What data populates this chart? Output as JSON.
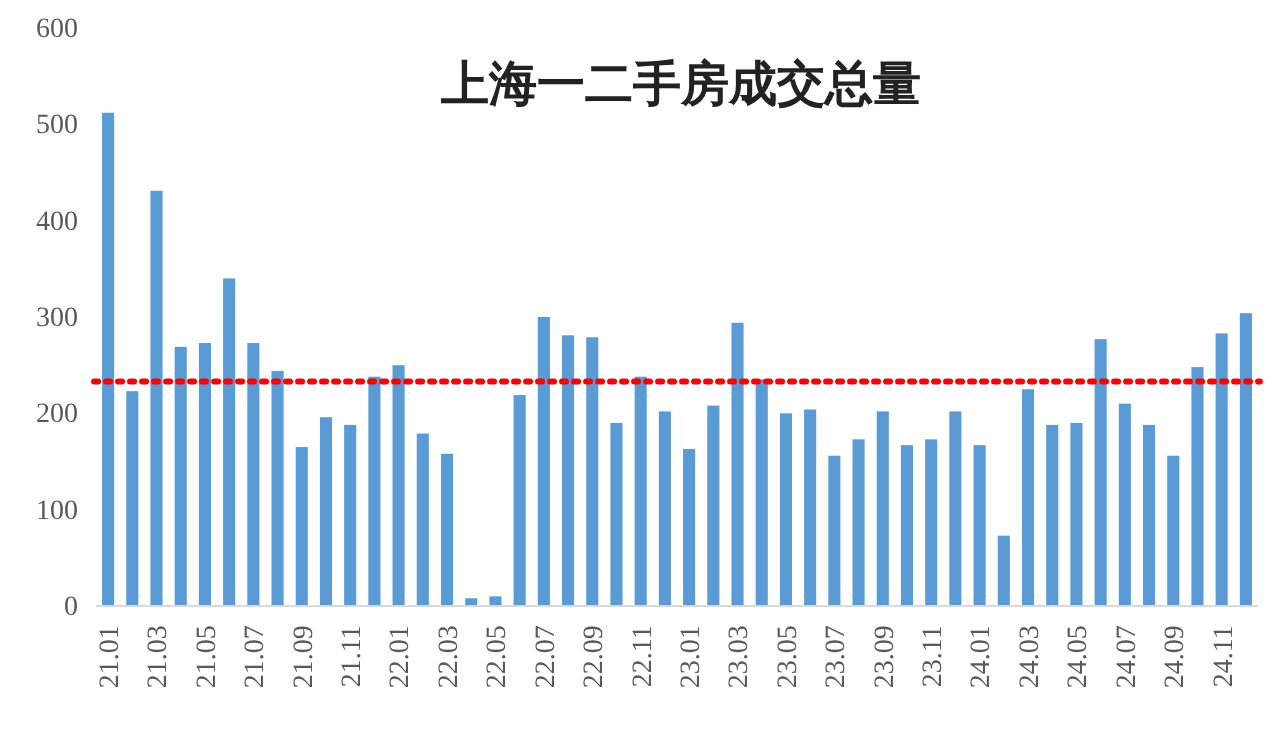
{
  "chart_data": {
    "type": "bar",
    "title": "上海一二手房成交总量",
    "categories": [
      "21.01",
      null,
      "21.03",
      null,
      "21.05",
      null,
      "21.07",
      null,
      "21.09",
      null,
      "21.11",
      null,
      "22.01",
      null,
      "22.03",
      null,
      "22.05",
      null,
      "22.07",
      null,
      "22.09",
      null,
      "22.11",
      null,
      "23.01",
      null,
      "23.03",
      null,
      "23.05",
      null,
      "23.07",
      null,
      "23.09",
      null,
      "23.11",
      null,
      "24.01",
      null,
      "24.03",
      null,
      "24.05",
      null,
      "24.07",
      null,
      "24.09",
      null,
      "24.11",
      null
    ],
    "values": [
      512,
      223,
      431,
      269,
      273,
      340,
      273,
      244,
      165,
      196,
      188,
      238,
      250,
      179,
      158,
      8,
      10,
      219,
      300,
      281,
      279,
      190,
      238,
      202,
      163,
      208,
      294,
      235,
      200,
      204,
      156,
      173,
      202,
      167,
      173,
      202,
      167,
      73,
      225,
      188,
      190,
      277,
      210,
      188,
      156,
      248,
      283,
      304
    ],
    "color": "#5b9bd5",
    "ylim": [
      0,
      600
    ],
    "yticks": [
      0,
      100,
      200,
      300,
      400,
      500,
      600
    ],
    "grid": false,
    "ref_lines": [
      {
        "axis": "y",
        "value": 233,
        "color": "#ff0000",
        "line_style": "dotted"
      }
    ]
  }
}
